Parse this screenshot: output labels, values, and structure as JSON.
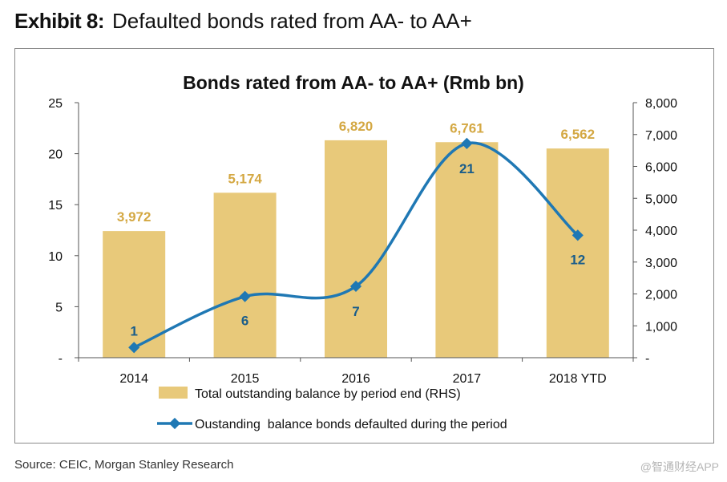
{
  "header": {
    "exhibit_label": "Exhibit 8:",
    "exhibit_title": "Defaulted bonds rated from AA- to AA+"
  },
  "footer": {
    "source": "Source: CEIC, Morgan Stanley Research",
    "watermark": "@智通财经APP"
  },
  "colors": {
    "bar": "#E8C97A",
    "bar_label": "#D4A843",
    "line": "#1F78B4",
    "line_label": "#1A5D8A"
  },
  "chart_data": {
    "type": "bar+line",
    "title": "Bonds rated from AA- to AA+  (Rmb bn)",
    "categories": [
      "2014",
      "2015",
      "2016",
      "2017",
      "2018 YTD"
    ],
    "series": [
      {
        "name": "Total outstanding balance by period end (RHS)",
        "type": "bar",
        "axis": "right",
        "values": [
          3972,
          5174,
          6820,
          6761,
          6562
        ],
        "labels": [
          "3,972",
          "5,174",
          "6,820",
          "6,761",
          "6,562"
        ]
      },
      {
        "name": "Oustanding  balance bonds defaulted during the period",
        "type": "line",
        "axis": "left",
        "values": [
          1,
          6,
          7,
          21,
          12
        ],
        "labels": [
          "1",
          "6",
          "7",
          "21",
          "12"
        ]
      }
    ],
    "y_left": {
      "min": 0,
      "max": 25,
      "ticks": [
        0,
        5,
        10,
        15,
        20,
        25
      ],
      "tick_labels": [
        "-",
        "5",
        "10",
        "15",
        "20",
        "25"
      ]
    },
    "y_right": {
      "min": 0,
      "max": 8000,
      "ticks": [
        0,
        1000,
        2000,
        3000,
        4000,
        5000,
        6000,
        7000,
        8000
      ],
      "tick_labels": [
        "-",
        "1,000",
        "2,000",
        "3,000",
        "4,000",
        "5,000",
        "6,000",
        "7,000",
        "8,000"
      ]
    },
    "grid": false,
    "legend": "bottom"
  }
}
